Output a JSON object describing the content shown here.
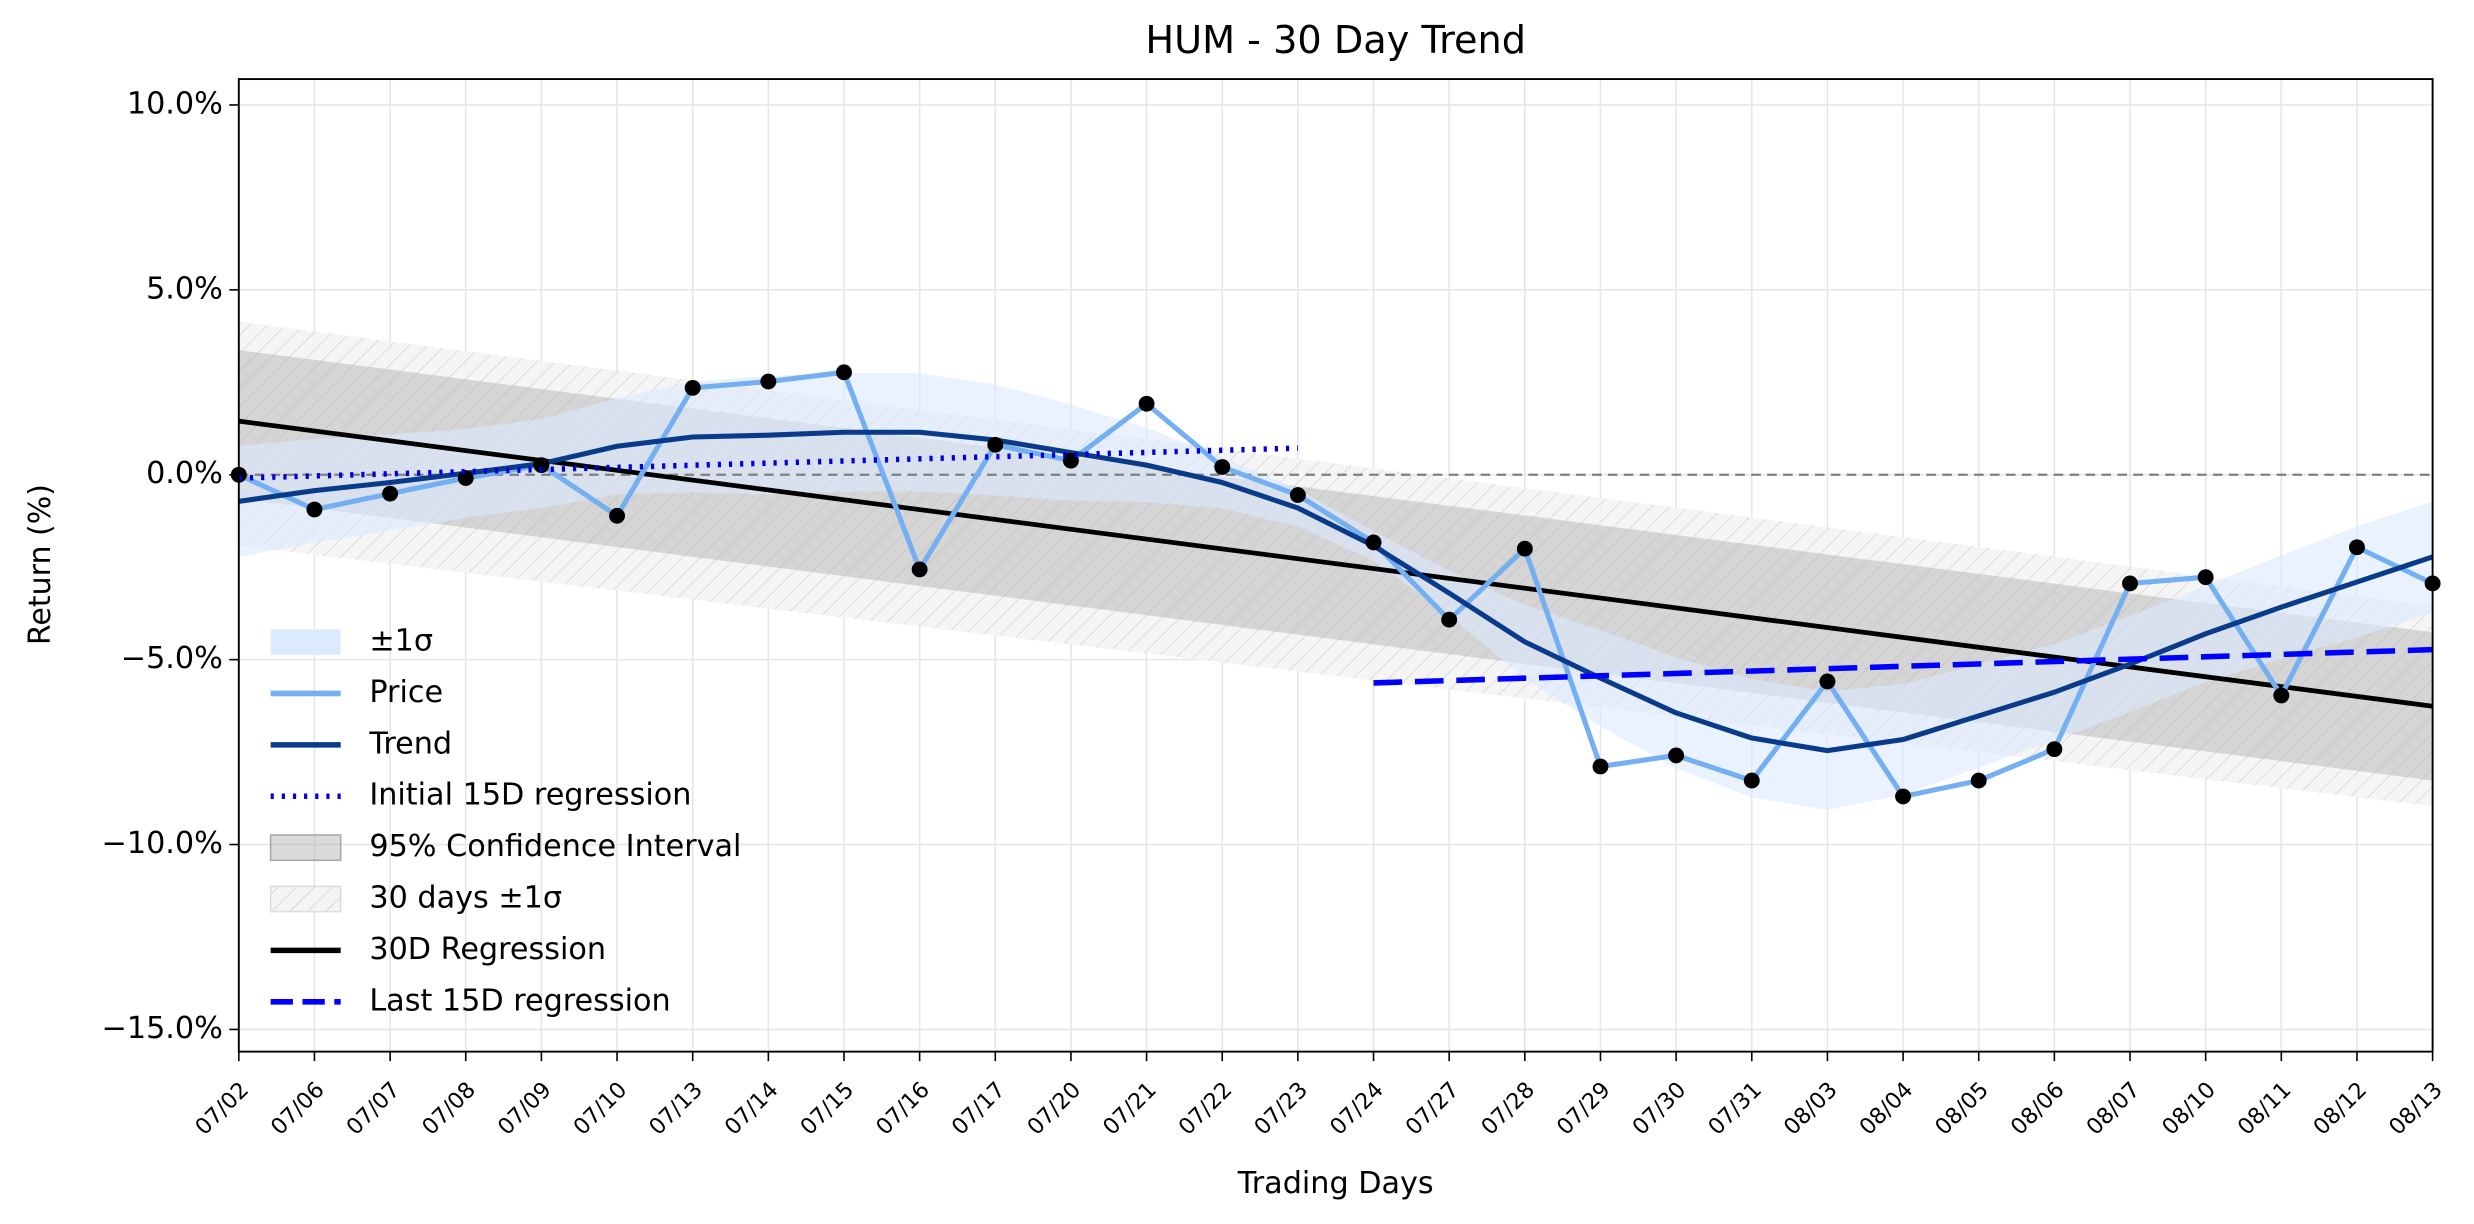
{
  "chart_data": {
    "type": "line",
    "title": "HUM - 30 Day Trend",
    "xlabel": "Trading Days",
    "ylabel": "Return (%)",
    "categories": [
      "07/02",
      "07/06",
      "07/07",
      "07/08",
      "07/09",
      "07/10",
      "07/13",
      "07/14",
      "07/15",
      "07/16",
      "07/17",
      "07/20",
      "07/21",
      "07/22",
      "07/23",
      "07/24",
      "07/27",
      "07/28",
      "07/29",
      "07/30",
      "07/31",
      "08/03",
      "08/04",
      "08/05",
      "08/06",
      "08/07",
      "08/10",
      "08/11",
      "08/12",
      "08/13"
    ],
    "ylim": [
      -15.6,
      10.7
    ],
    "yticks": [
      {
        "value": -15,
        "label": "−15.0%"
      },
      {
        "value": -10,
        "label": "−10.0%"
      },
      {
        "value": -5,
        "label": "−5.0%"
      },
      {
        "value": 0,
        "label": "0.0%"
      },
      {
        "value": 5,
        "label": "5.0%"
      },
      {
        "value": 10,
        "label": "10.0%"
      }
    ],
    "grid": true,
    "legend": "lower left",
    "hline": {
      "value": 0,
      "color": "#808080"
    },
    "series": [
      {
        "name": "Price",
        "color": "#74aff2",
        "marker_color": "#000000",
        "values": [
          0,
          -0.94,
          -0.51,
          -0.09,
          0.26,
          -1.11,
          2.35,
          2.52,
          2.77,
          -2.56,
          0.81,
          0.38,
          1.92,
          0.21,
          -0.55,
          -1.83,
          -3.92,
          -2.0,
          -7.89,
          -7.59,
          -8.27,
          -5.59,
          -8.7,
          -8.27,
          -7.42,
          -2.94,
          -2.77,
          -5.97,
          -1.96,
          -2.94
        ]
      },
      {
        "name": "Trend",
        "color": "#0a3a8a",
        "values": [
          -0.72,
          -0.43,
          -0.21,
          0.04,
          0.3,
          0.77,
          1.02,
          1.07,
          1.15,
          1.15,
          0.94,
          0.6,
          0.26,
          -0.21,
          -0.9,
          -1.92,
          -3.2,
          -4.52,
          -5.5,
          -6.44,
          -7.12,
          -7.46,
          -7.16,
          -6.52,
          -5.88,
          -5.12,
          -4.3,
          -3.58,
          -2.9,
          -2.22
        ]
      }
    ],
    "band": {
      "name": "±1σ",
      "color": "#dbeafd",
      "upper": [
        0.78,
        0.97,
        1.09,
        1.24,
        1.5,
        2.07,
        2.52,
        2.67,
        2.75,
        2.75,
        2.44,
        1.9,
        1.26,
        0.49,
        -0.4,
        -1.52,
        -2.6,
        -3.52,
        -4.2,
        -4.94,
        -5.52,
        -5.86,
        -5.66,
        -5.12,
        -4.58,
        -3.82,
        -3.0,
        -2.18,
        -1.4,
        -0.72
      ],
      "lower": [
        -2.22,
        -1.83,
        -1.51,
        -1.16,
        -0.9,
        -0.53,
        -0.48,
        -0.53,
        -0.45,
        -0.45,
        -0.56,
        -0.7,
        -0.74,
        -0.91,
        -1.4,
        -2.32,
        -3.8,
        -5.52,
        -6.8,
        -7.94,
        -8.72,
        -9.06,
        -8.66,
        -7.92,
        -7.18,
        -6.42,
        -5.6,
        -4.98,
        -4.4,
        -3.72
      ]
    },
    "intervals": [
      {
        "name": "95% Confidence Interval",
        "color": "#b0b0b0",
        "hatch": false,
        "x": [
          "07/02",
          "08/13"
        ],
        "upper": [
          3.37,
          -4.26
        ],
        "lower": [
          -0.64,
          -8.27
        ]
      },
      {
        "name": "30 days ±1σ",
        "color": "#d8d8d8",
        "hatch": true,
        "x": [
          "07/02",
          "08/13"
        ],
        "upper": [
          4.14,
          -3.54
        ],
        "lower": [
          -1.92,
          -8.96
        ]
      }
    ],
    "regressions": [
      {
        "name": "Initial 15D regression",
        "color": "#0000dd",
        "style": "dotted",
        "x": [
          "07/02",
          "07/23"
        ],
        "values": [
          -0.09,
          0.72
        ]
      },
      {
        "name": "30D Regression",
        "color": "#000000",
        "style": "solid",
        "x": [
          "07/02",
          "08/13"
        ],
        "values": [
          1.45,
          -6.26
        ]
      },
      {
        "name": "Last 15D regression",
        "color": "#0000ff",
        "style": "dashed",
        "x": [
          "07/24",
          "08/13"
        ],
        "values": [
          -5.63,
          -4.73
        ]
      }
    ]
  }
}
